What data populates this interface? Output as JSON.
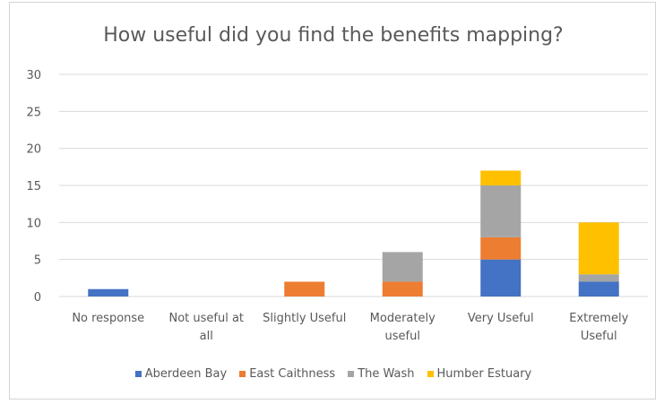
{
  "chart_data": {
    "type": "bar",
    "stacked": true,
    "title": "How useful did you find the benefits mapping?",
    "categories": [
      [
        "No response"
      ],
      [
        "Not useful at",
        "all"
      ],
      [
        "Slightly Useful"
      ],
      [
        "Moderately",
        "useful"
      ],
      [
        "Very Useful"
      ],
      [
        "Extremely",
        "Useful"
      ]
    ],
    "series": [
      {
        "name": "Aberdeen Bay",
        "color": "#4472c4",
        "values": [
          1,
          0,
          0,
          0,
          5,
          2
        ]
      },
      {
        "name": "East Caithness",
        "color": "#ed7d31",
        "values": [
          0,
          0,
          2,
          2,
          3,
          0
        ]
      },
      {
        "name": "The Wash",
        "color": "#a5a5a5",
        "values": [
          0,
          0,
          0,
          4,
          7,
          1
        ]
      },
      {
        "name": "Humber Estuary",
        "color": "#ffc000",
        "values": [
          0,
          0,
          0,
          0,
          2,
          7
        ]
      }
    ],
    "ylim": [
      0,
      30
    ],
    "yticks": [
      0,
      5,
      10,
      15,
      20,
      25,
      30
    ],
    "grid": true,
    "legend": "bottom"
  }
}
